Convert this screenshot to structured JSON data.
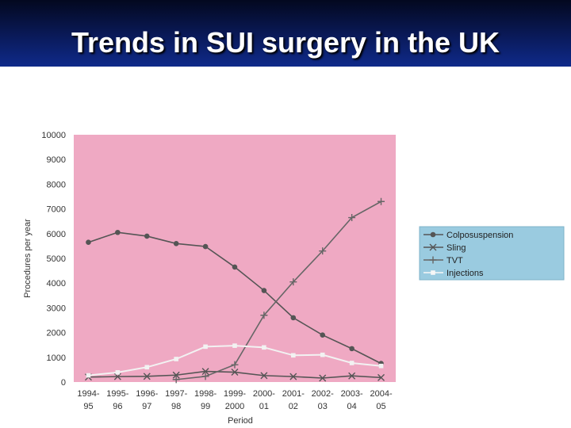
{
  "slide": {
    "title": "Trends in SUI surgery in the UK"
  },
  "chart_data": {
    "type": "line",
    "xlabel": "Period",
    "ylabel": "Procedures per year",
    "ylim": [
      0,
      10000
    ],
    "yticks": [
      "0",
      "1000",
      "2000",
      "3000",
      "4000",
      "5000",
      "6000",
      "7000",
      "8000",
      "9000",
      "10000"
    ],
    "categories": [
      [
        "1994-",
        "95"
      ],
      [
        "1995-",
        "96"
      ],
      [
        "1996-",
        "97"
      ],
      [
        "1997-",
        "98"
      ],
      [
        "1998-",
        "99"
      ],
      [
        "1999-",
        "2000"
      ],
      [
        "2000-",
        "01"
      ],
      [
        "2001-",
        "02"
      ],
      [
        "2002-",
        "03"
      ],
      [
        "2003-",
        "04"
      ],
      [
        "2004-",
        "05"
      ]
    ],
    "plot_background": "#efa9c3",
    "legend_background": "#9acbe0",
    "legend_position": "right",
    "series": [
      {
        "name": "Colposuspension",
        "marker": "circle",
        "color": "#555555",
        "values": [
          5650,
          6050,
          5900,
          5600,
          5480,
          4650,
          3700,
          2600,
          1900,
          1350,
          750
        ]
      },
      {
        "name": "Sling",
        "marker": "x",
        "color": "#555555",
        "values": [
          200,
          220,
          230,
          280,
          430,
          400,
          260,
          220,
          160,
          250,
          180
        ]
      },
      {
        "name": "TVT",
        "marker": "plus",
        "color": "#666666",
        "values": [
          null,
          null,
          null,
          100,
          230,
          700,
          2700,
          4050,
          5300,
          6650,
          7300
        ]
      },
      {
        "name": "Injections",
        "marker": "square",
        "color": "#f2f2f2",
        "values": [
          270,
          390,
          600,
          930,
          1430,
          1470,
          1400,
          1080,
          1100,
          770,
          650
        ]
      }
    ]
  }
}
